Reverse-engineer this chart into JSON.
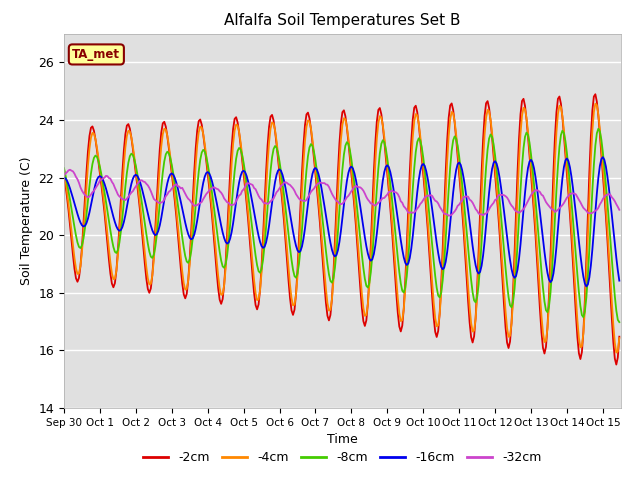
{
  "title": "Alfalfa Soil Temperatures Set B",
  "xlabel": "Time",
  "ylabel": "Soil Temperature (C)",
  "ylim": [
    14,
    27
  ],
  "xlim_days": 15.5,
  "xtick_labels": [
    "Sep 30",
    "Oct 1",
    "Oct 2",
    "Oct 3",
    "Oct 4",
    "Oct 5",
    "Oct 6",
    "Oct 7",
    "Oct 8",
    "Oct 9",
    "Oct 10",
    "Oct 11",
    "Oct 12",
    "Oct 13",
    "Oct 14",
    "Oct 15"
  ],
  "series": {
    "-2cm": {
      "color": "#dd0000",
      "lw": 1.3
    },
    "-4cm": {
      "color": "#ff8800",
      "lw": 1.3
    },
    "-8cm": {
      "color": "#44cc00",
      "lw": 1.3
    },
    "-16cm": {
      "color": "#0000ee",
      "lw": 1.3
    },
    "-32cm": {
      "color": "#cc44cc",
      "lw": 1.3
    }
  },
  "annotation_text": "TA_met",
  "annotation_color": "#880000",
  "bg_color": "#e0e0e0",
  "yticks": [
    14,
    16,
    18,
    20,
    22,
    24,
    26
  ]
}
